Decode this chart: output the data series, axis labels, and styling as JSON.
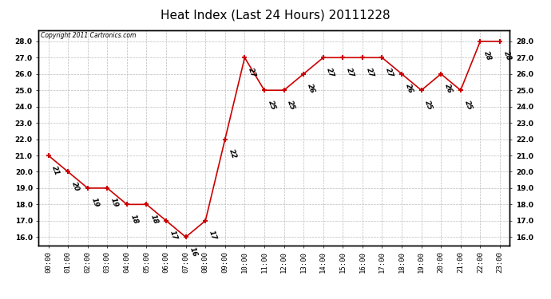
{
  "title": "Heat Index (Last 24 Hours) 20111228",
  "copyright": "Copyright 2011 Cartronics.com",
  "times": [
    "00:00",
    "01:00",
    "02:00",
    "03:00",
    "04:00",
    "05:00",
    "06:00",
    "07:00",
    "08:00",
    "09:00",
    "10:00",
    "11:00",
    "12:00",
    "13:00",
    "14:00",
    "15:00",
    "16:00",
    "17:00",
    "18:00",
    "19:00",
    "20:00",
    "21:00",
    "22:00",
    "23:00"
  ],
  "values": [
    21,
    20,
    19,
    19,
    18,
    18,
    17,
    16,
    17,
    22,
    27,
    25,
    25,
    26,
    27,
    27,
    27,
    27,
    26,
    25,
    26,
    25,
    28,
    28
  ],
  "line_color": "#cc0000",
  "marker_color": "#cc0000",
  "bg_color": "#ffffff",
  "plot_bg_color": "#ffffff",
  "grid_color": "#bbbbbb",
  "title_fontsize": 11,
  "tick_fontsize": 6.5,
  "annotation_fontsize": 6.5,
  "ylim_min": 15.5,
  "ylim_max": 28.7,
  "yticks": [
    16.0,
    17.0,
    18.0,
    19.0,
    20.0,
    21.0,
    22.0,
    23.0,
    24.0,
    25.0,
    26.0,
    27.0,
    28.0
  ]
}
